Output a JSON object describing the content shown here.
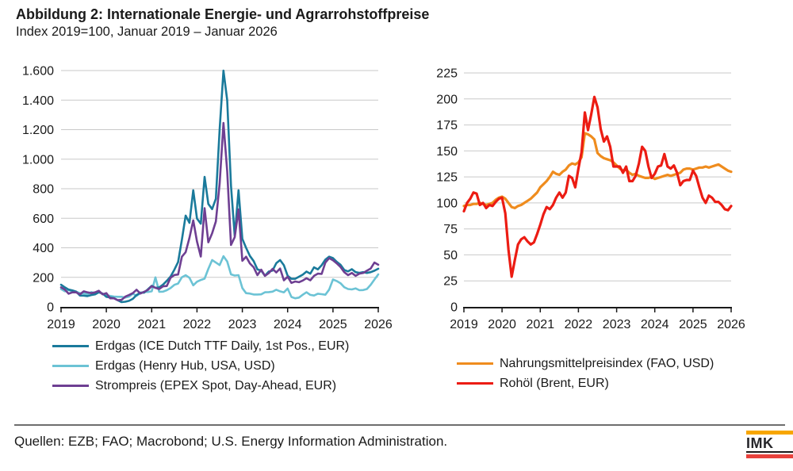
{
  "header": {
    "title": "Abbildung 2: Internationale Energie- und Agrarrohstoffpreise",
    "subtitle": "Index 2019=100, Januar 2019 – Januar 2026"
  },
  "footer": {
    "sources": "Quellen: EZB; FAO; Macrobond; U.S. Energy Information Administration.",
    "logo_text": "IMK"
  },
  "colors": {
    "gridline": "#C9C9C9",
    "axis": "#1A1A1A",
    "imk_orange": "#F7A600",
    "imk_red": "#E8423C"
  },
  "chart_data": [
    {
      "id": "energy-chart",
      "type": "line",
      "x_tick_labels": [
        "2019",
        "2020",
        "2021",
        "2022",
        "2023",
        "2024",
        "2025",
        "2026"
      ],
      "x_start": "2019-01",
      "x_end": "2026-01",
      "interval": "monthly",
      "ylim": [
        0,
        1600
      ],
      "y_tick_values": [
        0,
        200,
        400,
        600,
        800,
        1000,
        1200,
        1400,
        1600
      ],
      "y_tick_labels": [
        "0",
        "200",
        "400",
        "600",
        "800",
        "1.000",
        "1.200",
        "1.400",
        "1.600"
      ],
      "grid": true,
      "legend_position": "bottom-left",
      "line_width": 2.6,
      "legend_order": [
        "erdgas_ttf",
        "erdgas_henry_hub",
        "strompreis"
      ],
      "series": [
        {
          "id": "erdgas_henry_hub",
          "name": "Erdgas (Henry Hub, USA, USD)",
          "color": "#6CC3D5",
          "values": [
            121,
            105,
            115,
            103,
            103,
            93,
            92,
            86,
            100,
            91,
            103,
            86,
            79,
            74,
            70,
            68,
            68,
            63,
            69,
            89,
            75,
            93,
            102,
            101,
            105,
            200,
            102,
            103,
            113,
            127,
            149,
            158,
            201,
            214,
            197,
            146,
            170,
            182,
            191,
            257,
            317,
            300,
            283,
            343,
            307,
            220,
            212,
            215,
            127,
            93,
            90,
            84,
            84,
            85,
            99,
            100,
            103,
            116,
            105,
            98,
            124,
            67,
            58,
            63,
            82,
            99,
            81,
            77,
            89,
            86,
            82,
            117,
            185,
            175,
            160,
            133,
            121,
            118,
            125,
            113,
            114,
            121,
            150,
            185,
            220
          ]
        },
        {
          "id": "erdgas_ttf",
          "name": "Erdgas (ICE Dutch TTF Daily, 1st Pos., EUR)",
          "color": "#1A7A9B",
          "values": [
            150,
            132,
            117,
            111,
            103,
            77,
            76,
            73,
            80,
            85,
            99,
            90,
            68,
            64,
            59,
            45,
            32,
            35,
            41,
            54,
            80,
            96,
            96,
            119,
            143,
            129,
            132,
            151,
            176,
            205,
            252,
            304,
            456,
            618,
            569,
            790,
            598,
            563,
            880,
            697,
            662,
            732,
            1204,
            1600,
            1400,
            820,
            480,
            790,
            460,
            400,
            345,
            310,
            254,
            246,
            211,
            239,
            246,
            296,
            317,
            282,
            211,
            190,
            190,
            204,
            218,
            239,
            225,
            268,
            254,
            282,
            320,
            340,
            330,
            305,
            285,
            250,
            240,
            255,
            235,
            230,
            235,
            230,
            235,
            245,
            258
          ]
        },
        {
          "id": "strompreis",
          "name": "Strompreis (EPEX Spot, Day-Ahead, EUR)",
          "color": "#6E3F92",
          "values": [
            132,
            117,
            89,
            98,
            98,
            85,
            105,
            98,
            93,
            98,
            109,
            85,
            93,
            58,
            58,
            45,
            47,
            69,
            80,
            93,
            116,
            90,
            102,
            115,
            140,
            129,
            121,
            139,
            141,
            197,
            216,
            219,
            340,
            370,
            467,
            586,
            443,
            341,
            668,
            437,
            498,
            578,
            836,
            1245,
            919,
            419,
            472,
            660,
            312,
            340,
            294,
            268,
            215,
            252,
            210,
            228,
            257,
            233,
            260,
            180,
            204,
            162,
            172,
            167,
            178,
            194,
            180,
            210,
            225,
            223,
            300,
            330,
            315,
            295,
            270,
            235,
            215,
            230,
            210,
            225,
            230,
            245,
            260,
            300,
            285
          ]
        }
      ]
    },
    {
      "id": "food-oil-chart",
      "type": "line",
      "x_tick_labels": [
        "2019",
        "2020",
        "2021",
        "2022",
        "2023",
        "2024",
        "2025",
        "2026"
      ],
      "x_start": "2019-01",
      "x_end": "2026-01",
      "interval": "monthly",
      "ylim": [
        0,
        225
      ],
      "y_tick_values": [
        0,
        25,
        50,
        75,
        100,
        125,
        150,
        175,
        200,
        225
      ],
      "y_tick_labels": [
        "0",
        "25",
        "50",
        "75",
        "100",
        "125",
        "150",
        "175",
        "200",
        "225"
      ],
      "grid": true,
      "legend_position": "bottom-left",
      "line_width": 3.2,
      "legend_order": [
        "nahrungsmittel",
        "rohoel"
      ],
      "series": [
        {
          "id": "nahrungsmittel",
          "name": "Nahrungsmittelpreisindex (FAO, USD)",
          "color": "#EF8C1E",
          "values": [
            97,
            98,
            98,
            99,
            99,
            100,
            99,
            98,
            99,
            100,
            103,
            105,
            106,
            104,
            100,
            96,
            95,
            97,
            98,
            100,
            102,
            104,
            107,
            110,
            115,
            118,
            121,
            125,
            130,
            128,
            127,
            130,
            132,
            136,
            138,
            137,
            139,
            144,
            167,
            166,
            164,
            161,
            148,
            145,
            143,
            142,
            141,
            139,
            136,
            133,
            131,
            132,
            129,
            127,
            128,
            126,
            125,
            124,
            124,
            125,
            123,
            124,
            125,
            126,
            127,
            126,
            127,
            128,
            129,
            132,
            133,
            133,
            132,
            133,
            134,
            134,
            135,
            134,
            135,
            136,
            137,
            135,
            133,
            131,
            130
          ]
        },
        {
          "id": "rohoel",
          "name": "Rohöl (Brent, EUR)",
          "color": "#EC1C13",
          "values": [
            92,
            100,
            104,
            110,
            109,
            98,
            100,
            95,
            98,
            97,
            101,
            104,
            105,
            90,
            55,
            29,
            45,
            60,
            65,
            67,
            63,
            60,
            62,
            70,
            79,
            89,
            96,
            94,
            98,
            105,
            110,
            105,
            110,
            126,
            124,
            115,
            133,
            149,
            187,
            170,
            185,
            202,
            192,
            171,
            159,
            164,
            154,
            135,
            135,
            135,
            129,
            135,
            121,
            121,
            126,
            138,
            154,
            150,
            135,
            124,
            128,
            135,
            136,
            147,
            135,
            133,
            136,
            129,
            117,
            121,
            122,
            122,
            131,
            126,
            115,
            105,
            100,
            107,
            105,
            101,
            101,
            98,
            94,
            93,
            97
          ]
        }
      ]
    }
  ]
}
